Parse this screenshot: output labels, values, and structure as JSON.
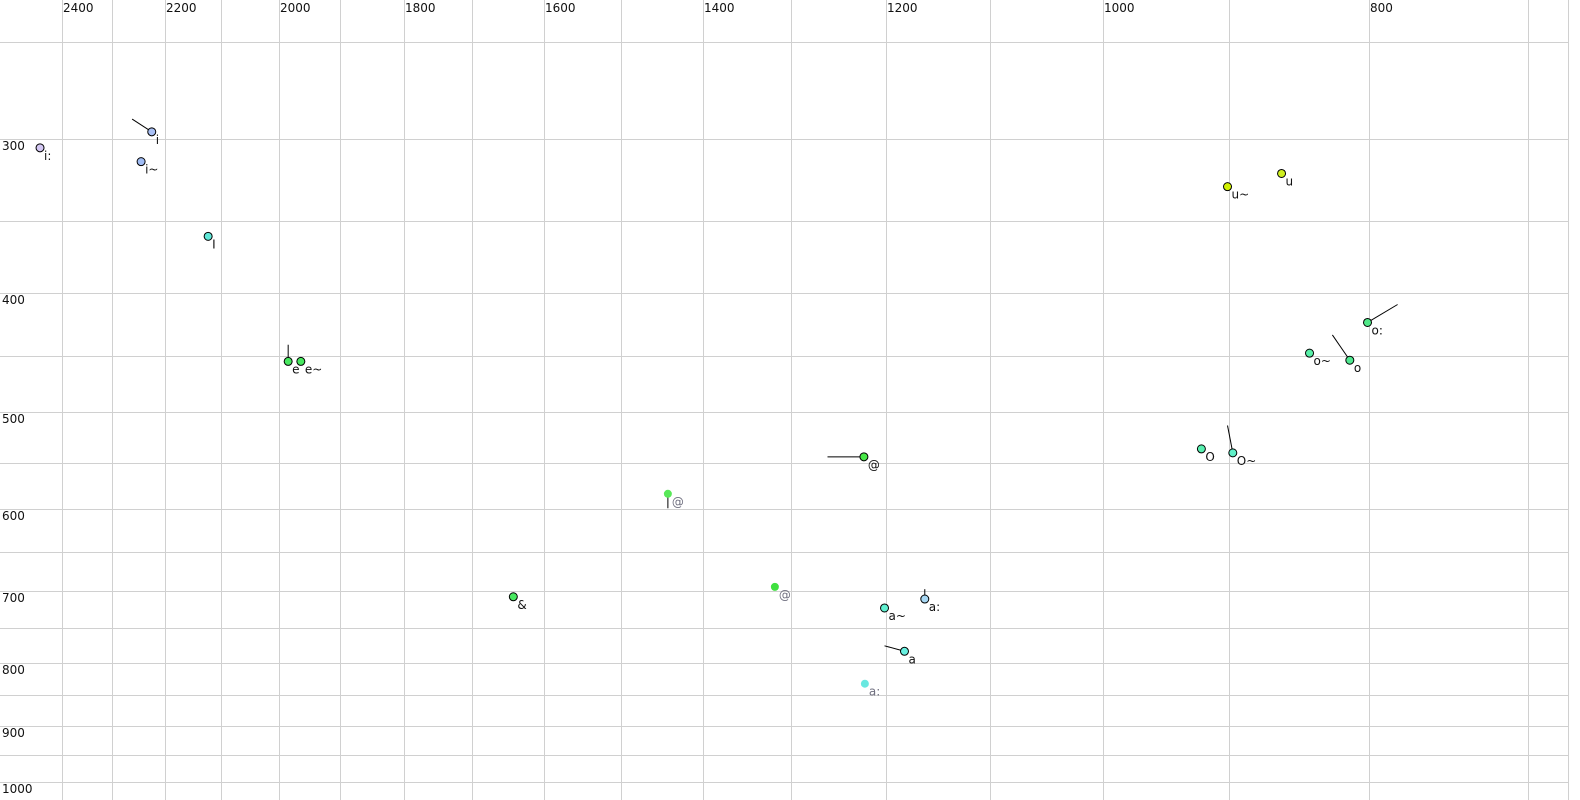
{
  "chart_data": {
    "type": "scatter",
    "title": "",
    "xlabel": "",
    "ylabel": "",
    "x_axis": {
      "reversed": true,
      "scale": "log",
      "range": [
        2527,
        700
      ],
      "ticks": [
        2400,
        2200,
        2000,
        1800,
        1600,
        1400,
        1200,
        1000,
        800
      ],
      "grid": [
        2400,
        2300,
        2200,
        2100,
        2000,
        1900,
        1800,
        1700,
        1600,
        1500,
        1400,
        1300,
        1200,
        1100,
        1000,
        900,
        800,
        700
      ]
    },
    "y_axis": {
      "reversed": false,
      "scale": "log",
      "range": [
        232,
        1030
      ],
      "ticks": [
        300,
        400,
        500,
        600,
        700,
        800,
        900,
        1000
      ],
      "grid": [
        250,
        300,
        350,
        400,
        450,
        500,
        550,
        600,
        650,
        700,
        750,
        800,
        850,
        900,
        950,
        1000
      ]
    },
    "grid": true,
    "colors": {
      "grid": "#d0d0d0",
      "outline": "#000000",
      "muted_label": "#707080"
    },
    "points": [
      {
        "label": "i:",
        "f2": 2444,
        "f1": 305,
        "color": "#d4c8f4"
      },
      {
        "label": "i",
        "f2": 2225,
        "f1": 296,
        "color": "#a8bff4",
        "trail": [
          2262,
          289
        ]
      },
      {
        "label": "i~",
        "f2": 2245,
        "f1": 313,
        "color": "#a0bcf4"
      },
      {
        "label": "I",
        "f2": 2122,
        "f1": 360,
        "color": "#60e8d8"
      },
      {
        "label": "e",
        "f2": 1984,
        "f1": 455,
        "color": "#48e860",
        "trail": [
          1984,
          441
        ]
      },
      {
        "label": "e~",
        "f2": 1963,
        "f1": 455,
        "color": "#48e860"
      },
      {
        "label": "&",
        "f2": 1642,
        "f1": 707,
        "color": "#48e860"
      },
      {
        "label": "@",
        "f2": 1442,
        "f1": 583,
        "color": "#58e858",
        "muted": true,
        "trail": [
          1442,
          599
        ]
      },
      {
        "label": "@",
        "f2": 1318,
        "f1": 694,
        "color": "#40e040",
        "muted": true
      },
      {
        "label": "@",
        "f2": 1223,
        "f1": 544,
        "color": "#48e848",
        "trail": [
          1261,
          544
        ]
      },
      {
        "label": "a~",
        "f2": 1202,
        "f1": 722,
        "color": "#60f0d0"
      },
      {
        "label": "a:",
        "f2": 1162,
        "f1": 710,
        "color": "#a8d8f4",
        "trail": [
          1162,
          697
        ]
      },
      {
        "label": "a",
        "f2": 1182,
        "f1": 783,
        "color": "#68f0e0",
        "trail": [
          1202,
          775
        ]
      },
      {
        "label": "a:",
        "f2": 1222,
        "f1": 832,
        "color": "#68e8e0",
        "muted": true
      },
      {
        "label": "O",
        "f2": 921,
        "f1": 536,
        "color": "#58f0b0"
      },
      {
        "label": "O~",
        "f2": 897,
        "f1": 540,
        "color": "#60f0c8",
        "trail": [
          901,
          513
        ]
      },
      {
        "label": "u~",
        "f2": 901,
        "f1": 328,
        "color": "#d0f000"
      },
      {
        "label": "u",
        "f2": 861,
        "f1": 320,
        "color": "#d0f020"
      },
      {
        "label": "o~",
        "f2": 841,
        "f1": 448,
        "color": "#58f0a8"
      },
      {
        "label": "o",
        "f2": 813,
        "f1": 454,
        "color": "#50e890",
        "trail": [
          825,
          433
        ]
      },
      {
        "label": "o:",
        "f2": 801,
        "f1": 423,
        "color": "#50e888",
        "trail": [
          781,
          409
        ]
      }
    ]
  }
}
